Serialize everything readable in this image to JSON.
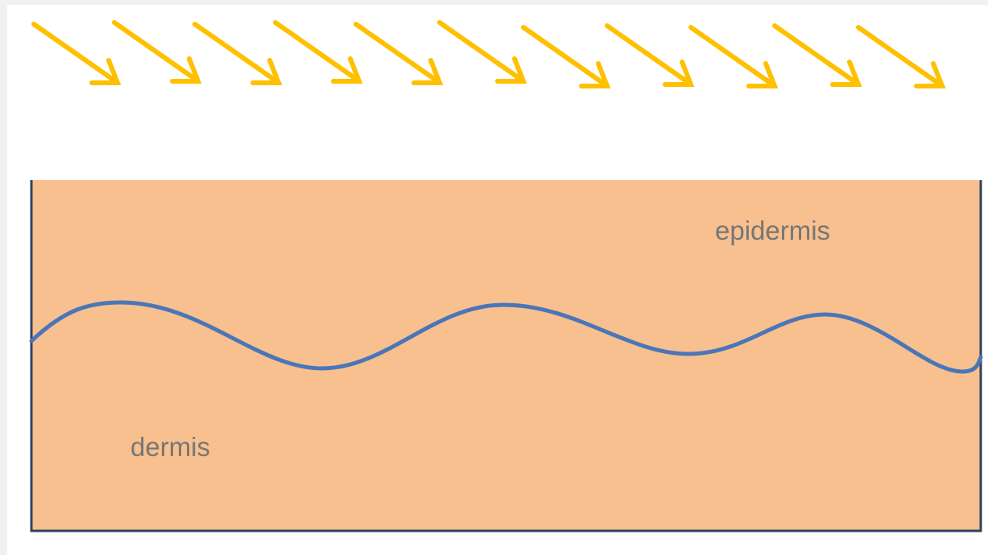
{
  "labels": {
    "upper_layer": "epidermis",
    "lower_layer": "dermis"
  },
  "colors": {
    "background": "#f1f1f1",
    "canvas": "#ffffff",
    "skin_fill": "#f8bf8f",
    "border": "#30415f",
    "boundary_curve": "#4a76b8",
    "arrows": "#ffc000",
    "label_text": "#767676"
  },
  "icons": {
    "incoming_rays": "diagonal-arrow-icon"
  },
  "arrow_count": 11
}
